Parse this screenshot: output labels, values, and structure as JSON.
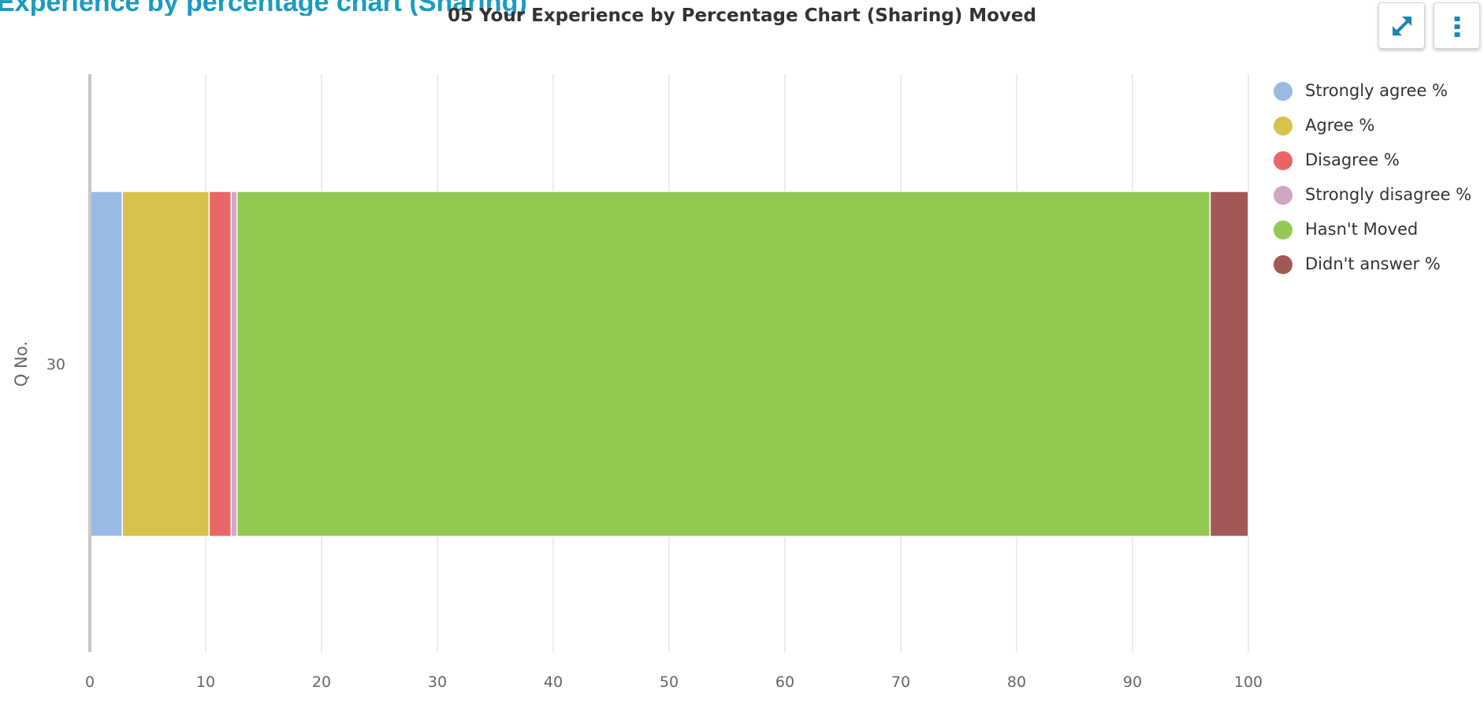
{
  "page": {
    "heading": "Experience by percentage chart (Sharing)"
  },
  "toolbar": {
    "expand_icon": "expand-arrows-icon",
    "menu_icon": "vertical-ellipsis-icon",
    "icon_color": "#1a86b0"
  },
  "chart_data": {
    "type": "bar",
    "orientation": "horizontal",
    "stacked": true,
    "title": "05 Your Experience by Percentage Chart (Sharing) Moved",
    "ylabel": "Q No.",
    "xlabel": "",
    "categories": [
      "30"
    ],
    "xlim": [
      0,
      100
    ],
    "xticks": [
      0,
      10,
      20,
      30,
      40,
      50,
      60,
      70,
      80,
      90,
      100
    ],
    "grid": true,
    "legend": "right",
    "series": [
      {
        "name": "Strongly agree %",
        "color": "#99bbe3",
        "values": [
          2.8
        ]
      },
      {
        "name": "Agree %",
        "color": "#d6c24c",
        "values": [
          7.5
        ]
      },
      {
        "name": "Disagree %",
        "color": "#e96666",
        "values": [
          1.9
        ]
      },
      {
        "name": "Strongly disagree %",
        "color": "#d0a6c4",
        "values": [
          0.5
        ]
      },
      {
        "name": "Hasn't Moved",
        "color": "#93c853",
        "values": [
          84.0
        ]
      },
      {
        "name": "Didn't answer %",
        "color": "#a35757",
        "values": [
          3.3
        ]
      }
    ]
  }
}
